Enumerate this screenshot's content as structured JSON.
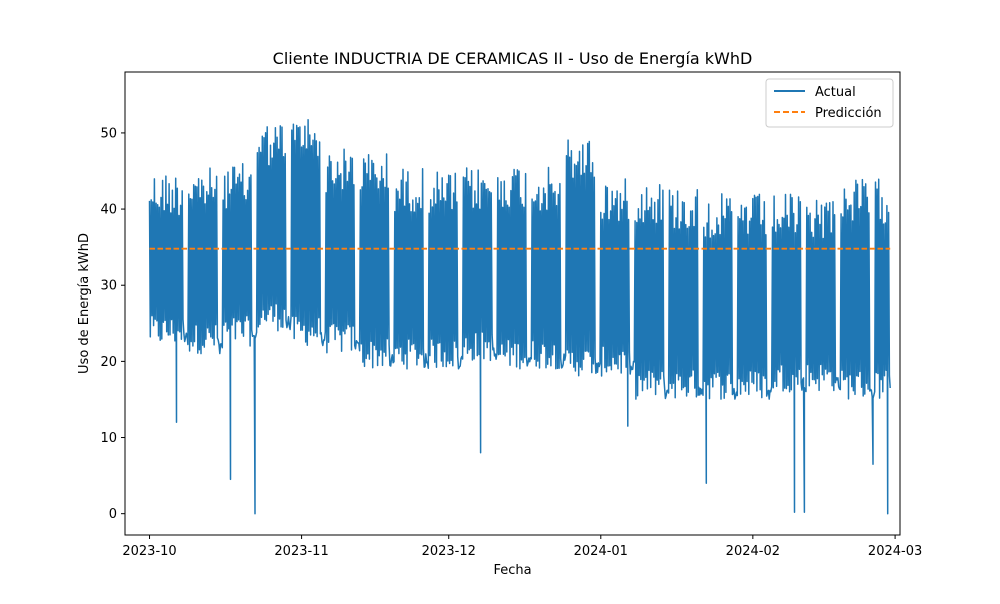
{
  "chart_data": {
    "type": "line",
    "title": "Cliente INDUCTRIA DE CERAMICAS II - Uso de Energía kWhD",
    "xlabel": "Fecha",
    "ylabel": "Uso de Energía kWhD",
    "x_ticks": [
      "2023-10",
      "2023-11",
      "2023-12",
      "2024-01",
      "2024-02",
      "2024-03"
    ],
    "y_ticks": [
      0,
      10,
      20,
      30,
      40,
      50
    ],
    "xlim": [
      "2023-09-26",
      "2024-03-02"
    ],
    "ylim": [
      -2.8,
      58.0
    ],
    "grid": false,
    "legend_position": "upper right",
    "series": [
      {
        "name": "Actual",
        "color": "#1f77b4",
        "style": "solid",
        "dense_blocks": [
          {
            "start": "2023-10-01",
            "end": "2023-10-09",
            "high": 48,
            "low": 22
          },
          {
            "start": "2023-10-09",
            "end": "2023-10-16",
            "high": 48.5,
            "low": 21
          },
          {
            "start": "2023-10-16",
            "end": "2023-10-23",
            "high": 49,
            "low": 22
          },
          {
            "start": "2023-10-23",
            "end": "2023-10-30",
            "high": 54.5,
            "low": 24
          },
          {
            "start": "2023-10-30",
            "end": "2023-11-06",
            "high": 55.5,
            "low": 22
          },
          {
            "start": "2023-11-06",
            "end": "2023-11-13",
            "high": 51,
            "low": 21
          },
          {
            "start": "2023-11-13",
            "end": "2023-11-20",
            "high": 50.5,
            "low": 19
          },
          {
            "start": "2023-11-20",
            "end": "2023-11-27",
            "high": 48.5,
            "low": 19
          },
          {
            "start": "2023-11-27",
            "end": "2023-12-04",
            "high": 48,
            "low": 19
          },
          {
            "start": "2023-12-04",
            "end": "2023-12-11",
            "high": 48.5,
            "low": 20
          },
          {
            "start": "2023-12-11",
            "end": "2023-12-18",
            "high": 49,
            "low": 19
          },
          {
            "start": "2023-12-18",
            "end": "2023-12-25",
            "high": 48.5,
            "low": 19
          },
          {
            "start": "2023-12-25",
            "end": "2024-01-01",
            "high": 52.5,
            "low": 18
          },
          {
            "start": "2024-01-01",
            "end": "2024-01-08",
            "high": 47,
            "low": 18
          },
          {
            "start": "2024-01-08",
            "end": "2024-01-15",
            "high": 47,
            "low": 15
          },
          {
            "start": "2024-01-15",
            "end": "2024-01-22",
            "high": 46,
            "low": 15
          },
          {
            "start": "2024-01-22",
            "end": "2024-01-29",
            "high": 45,
            "low": 15
          },
          {
            "start": "2024-01-29",
            "end": "2024-02-05",
            "high": 45,
            "low": 15
          },
          {
            "start": "2024-02-05",
            "end": "2024-02-12",
            "high": 45,
            "low": 16
          },
          {
            "start": "2024-02-12",
            "end": "2024-02-19",
            "high": 45,
            "low": 16
          },
          {
            "start": "2024-02-19",
            "end": "2024-02-29",
            "high": 47,
            "low": 15
          }
        ],
        "gaps": [
          "2023-10-08",
          "2023-10-15",
          "2023-10-22",
          "2023-10-29",
          "2023-11-05",
          "2023-11-12",
          "2023-11-19",
          "2023-11-26",
          "2023-12-03",
          "2023-12-10",
          "2023-12-17",
          "2023-12-24",
          "2023-12-31",
          "2024-01-07",
          "2024-01-14",
          "2024-01-21",
          "2024-01-28",
          "2024-02-04",
          "2024-02-11",
          "2024-02-18",
          "2024-02-25"
        ],
        "dips": [
          {
            "x": "2023-10-06",
            "y": 12
          },
          {
            "x": "2023-10-17",
            "y": 4.5
          },
          {
            "x": "2023-10-22",
            "y": 0
          },
          {
            "x": "2023-12-07",
            "y": 8
          },
          {
            "x": "2024-01-06",
            "y": 11.5
          },
          {
            "x": "2024-01-22",
            "y": 4
          },
          {
            "x": "2024-02-09",
            "y": 0.2
          },
          {
            "x": "2024-02-11",
            "y": 0.2
          },
          {
            "x": "2024-02-25",
            "y": 6.5
          },
          {
            "x": "2024-02-28",
            "y": 0
          }
        ],
        "end_value": 16.5
      },
      {
        "name": "Predicción",
        "color": "#ff7f0e",
        "style": "dashed",
        "constant_value": 34.8,
        "start": "2023-10-01",
        "end": "2024-02-29"
      }
    ]
  }
}
